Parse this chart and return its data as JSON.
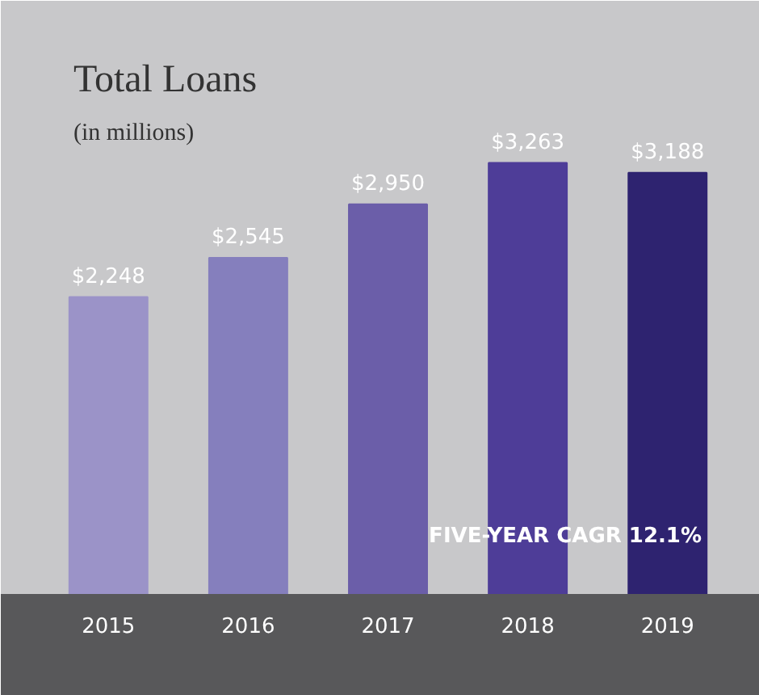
{
  "chart_data": {
    "type": "bar",
    "title": "Total Loans",
    "subtitle": "(in millions)",
    "categories": [
      "2015",
      "2016",
      "2017",
      "2018",
      "2019"
    ],
    "values": [
      2248,
      2545,
      2950,
      3263,
      3188
    ],
    "value_labels": [
      "$2,248",
      "$2,545",
      "$2,950",
      "$3,263",
      "$3,188"
    ],
    "colors": [
      "#9b93c8",
      "#857fbd",
      "#6b5ea9",
      "#4e3d98",
      "#2e2370"
    ],
    "ylim": [
      0,
      4490
    ],
    "annotations": [
      "FIVE-YEAR CAGR 12.1%"
    ]
  }
}
